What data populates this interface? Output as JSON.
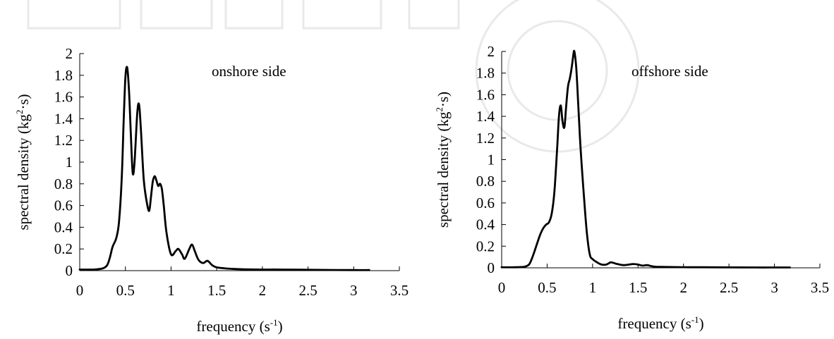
{
  "chart_data": [
    {
      "type": "line",
      "annotation": "onshore side",
      "xlabel": "frequency (s-1)",
      "xlabel_parts": {
        "main": "frequency (s",
        "sup": "-1",
        "end": ")"
      },
      "ylabel": "spectral density (kg2·s)",
      "ylabel_parts": {
        "main": "spectral density (kg",
        "sup": "2",
        "end": "·s)"
      },
      "xlim": [
        0,
        3.5
      ],
      "ylim": [
        0,
        2
      ],
      "xticks": [
        0,
        0.5,
        1,
        1.5,
        2,
        2.5,
        3,
        3.5
      ],
      "xtick_labels": [
        "0",
        "0.5",
        "1",
        "1.5",
        "2",
        "2.5",
        "3",
        "3.5"
      ],
      "yticks": [
        0,
        0.2,
        0.4,
        0.6,
        0.8,
        1,
        1.2,
        1.4,
        1.6,
        1.8,
        2
      ],
      "ytick_labels": [
        "0",
        "0.2",
        "0.4",
        "0.6",
        "0.8",
        "1",
        "1.2",
        "1.4",
        "1.6",
        "1.8",
        "2"
      ],
      "grid": false,
      "line_color": "#000000",
      "series": [
        {
          "x": [
            0,
            0.15,
            0.25,
            0.3,
            0.33,
            0.36,
            0.4,
            0.43,
            0.46,
            0.48,
            0.5,
            0.52,
            0.54,
            0.56,
            0.58,
            0.6,
            0.63,
            0.65,
            0.67,
            0.7,
            0.73,
            0.76,
            0.78,
            0.8,
            0.82,
            0.84,
            0.86,
            0.88,
            0.9,
            0.92,
            0.95,
            1.0,
            1.05,
            1.08,
            1.12,
            1.15,
            1.2,
            1.23,
            1.26,
            1.3,
            1.35,
            1.4,
            1.45,
            1.5,
            1.6,
            1.7,
            1.8,
            2.0,
            2.2,
            2.5,
            2.8,
            3.0,
            3.17
          ],
          "y": [
            0.01,
            0.01,
            0.02,
            0.05,
            0.12,
            0.22,
            0.3,
            0.45,
            0.85,
            1.35,
            1.78,
            1.87,
            1.65,
            1.25,
            0.9,
            1.0,
            1.45,
            1.53,
            1.3,
            0.85,
            0.65,
            0.55,
            0.68,
            0.82,
            0.87,
            0.83,
            0.78,
            0.8,
            0.75,
            0.6,
            0.35,
            0.15,
            0.18,
            0.2,
            0.15,
            0.11,
            0.2,
            0.24,
            0.18,
            0.1,
            0.07,
            0.09,
            0.05,
            0.03,
            0.02,
            0.015,
            0.012,
            0.01,
            0.01,
            0.008,
            0.006,
            0.005,
            0.005
          ]
        }
      ]
    },
    {
      "type": "line",
      "annotation": "offshore side",
      "xlabel": "frequency (s-1)",
      "xlabel_parts": {
        "main": "frequency (s",
        "sup": "-1",
        "end": ")"
      },
      "ylabel": "spectral density (kg2·s)",
      "ylabel_parts": {
        "main": "spectral density (kg",
        "sup": "2",
        "end": "·s)"
      },
      "xlim": [
        0,
        3.5
      ],
      "ylim": [
        0,
        2
      ],
      "xticks": [
        0,
        0.5,
        1,
        1.5,
        2,
        2.5,
        3,
        3.5
      ],
      "xtick_labels": [
        "0",
        "0.5",
        "1",
        "1.5",
        "2",
        "2.5",
        "3",
        "3.5"
      ],
      "yticks": [
        0,
        0.2,
        0.4,
        0.6,
        0.8,
        1,
        1.2,
        1.4,
        1.6,
        1.8,
        2
      ],
      "ytick_labels": [
        "0",
        "0.2",
        "0.4",
        "0.6",
        "0.8",
        "1",
        "1.2",
        "1.4",
        "1.6",
        "1.8",
        "2"
      ],
      "grid": false,
      "line_color": "#000000",
      "series": [
        {
          "x": [
            0,
            0.15,
            0.25,
            0.3,
            0.33,
            0.36,
            0.4,
            0.43,
            0.46,
            0.49,
            0.52,
            0.55,
            0.58,
            0.61,
            0.63,
            0.65,
            0.67,
            0.69,
            0.71,
            0.73,
            0.75,
            0.77,
            0.79,
            0.8,
            0.82,
            0.84,
            0.86,
            0.88,
            0.91,
            0.94,
            0.97,
            1.0,
            1.05,
            1.1,
            1.15,
            1.2,
            1.25,
            1.3,
            1.35,
            1.4,
            1.45,
            1.5,
            1.55,
            1.6,
            1.65,
            1.7,
            1.8,
            2.0,
            2.2,
            2.5,
            2.8,
            3.0,
            3.17
          ],
          "y": [
            0.005,
            0.005,
            0.01,
            0.03,
            0.08,
            0.15,
            0.25,
            0.32,
            0.37,
            0.4,
            0.42,
            0.5,
            0.7,
            1.1,
            1.4,
            1.5,
            1.35,
            1.3,
            1.5,
            1.68,
            1.75,
            1.85,
            1.98,
            2.0,
            1.85,
            1.55,
            1.22,
            0.95,
            0.6,
            0.3,
            0.12,
            0.08,
            0.05,
            0.03,
            0.03,
            0.05,
            0.04,
            0.03,
            0.025,
            0.03,
            0.035,
            0.03,
            0.02,
            0.025,
            0.015,
            0.01,
            0.008,
            0.006,
            0.005,
            0.004,
            0.003,
            0.003,
            0.003
          ]
        }
      ]
    }
  ]
}
